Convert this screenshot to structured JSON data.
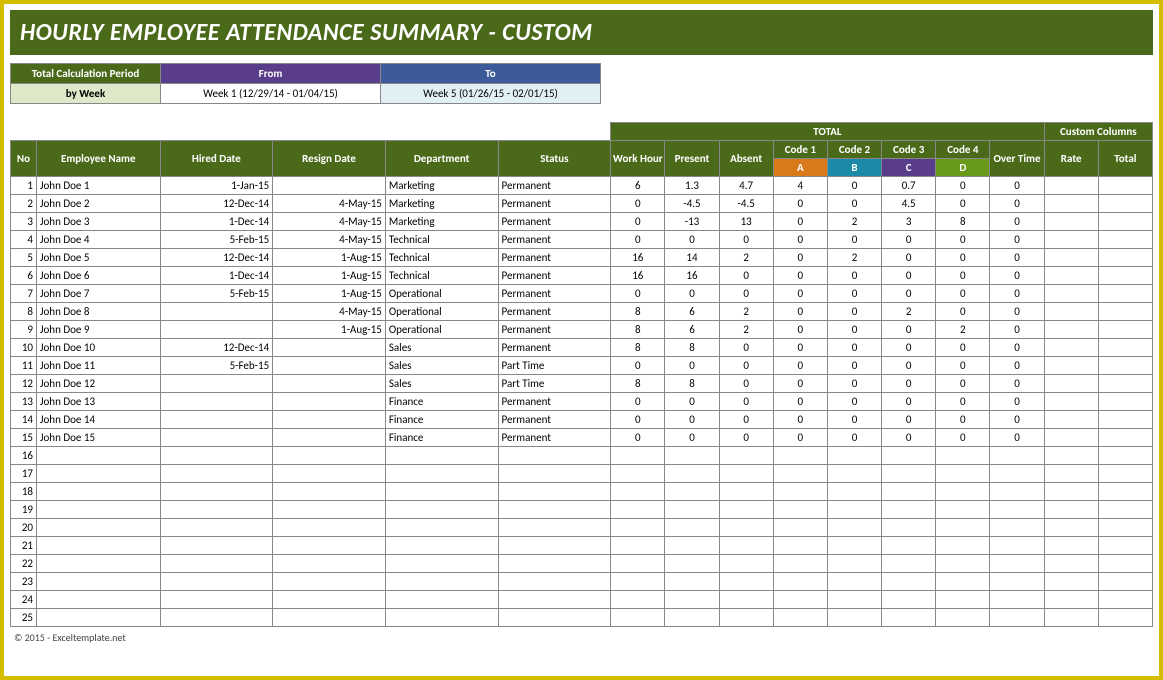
{
  "title": "HOURLY EMPLOYEE ATTENDANCE SUMMARY - CUSTOM",
  "period": {
    "headers": {
      "tcp": "Total Calculation Period",
      "from": "From",
      "to": "To"
    },
    "values": {
      "tcp": "by Week",
      "from": "Week 1 (12/29/14 - 01/04/15)",
      "to": "Week 5 (01/26/15 - 02/01/15)"
    }
  },
  "super": {
    "total": "TOTAL",
    "custom": "Custom Columns"
  },
  "columns": {
    "no": "No",
    "name": "Employee Name",
    "hired": "Hired Date",
    "resign": "Resign Date",
    "dept": "Department",
    "status": "Status",
    "wh": "Work Hour",
    "present": "Present",
    "absent": "Absent",
    "c1": "Code 1",
    "c2": "Code 2",
    "c3": "Code 3",
    "c4": "Code 4",
    "ot": "Over Time",
    "rate": "Rate",
    "total": "Total",
    "sub": {
      "a": "A",
      "b": "B",
      "c": "C",
      "d": "D"
    }
  },
  "rows": [
    {
      "no": 1,
      "name": "John Doe 1",
      "hired": "1-Jan-15",
      "resign": "",
      "dept": "Marketing",
      "status": "Permanent",
      "wh": "6",
      "pr": "1.3",
      "ab": "4.7",
      "c1": "4",
      "c2": "0",
      "c3": "0.7",
      "c4": "0",
      "ot": "0"
    },
    {
      "no": 2,
      "name": "John Doe 2",
      "hired": "12-Dec-14",
      "resign": "4-May-15",
      "dept": "Marketing",
      "status": "Permanent",
      "wh": "0",
      "pr": "-4.5",
      "ab": "-4.5",
      "c1": "0",
      "c2": "0",
      "c3": "4.5",
      "c4": "0",
      "ot": "0"
    },
    {
      "no": 3,
      "name": "John Doe 3",
      "hired": "1-Dec-14",
      "resign": "4-May-15",
      "dept": "Marketing",
      "status": "Permanent",
      "wh": "0",
      "pr": "-13",
      "ab": "13",
      "c1": "0",
      "c2": "2",
      "c3": "3",
      "c4": "8",
      "ot": "0"
    },
    {
      "no": 4,
      "name": "John Doe 4",
      "hired": "5-Feb-15",
      "resign": "4-May-15",
      "dept": "Technical",
      "status": "Permanent",
      "wh": "0",
      "pr": "0",
      "ab": "0",
      "c1": "0",
      "c2": "0",
      "c3": "0",
      "c4": "0",
      "ot": "0"
    },
    {
      "no": 5,
      "name": "John Doe 5",
      "hired": "12-Dec-14",
      "resign": "1-Aug-15",
      "dept": "Technical",
      "status": "Permanent",
      "wh": "16",
      "pr": "14",
      "ab": "2",
      "c1": "0",
      "c2": "2",
      "c3": "0",
      "c4": "0",
      "ot": "0"
    },
    {
      "no": 6,
      "name": "John Doe 6",
      "hired": "1-Dec-14",
      "resign": "1-Aug-15",
      "dept": "Technical",
      "status": "Permanent",
      "wh": "16",
      "pr": "16",
      "ab": "0",
      "c1": "0",
      "c2": "0",
      "c3": "0",
      "c4": "0",
      "ot": "0"
    },
    {
      "no": 7,
      "name": "John Doe 7",
      "hired": "5-Feb-15",
      "resign": "1-Aug-15",
      "dept": "Operational",
      "status": "Permanent",
      "wh": "0",
      "pr": "0",
      "ab": "0",
      "c1": "0",
      "c2": "0",
      "c3": "0",
      "c4": "0",
      "ot": "0"
    },
    {
      "no": 8,
      "name": "John Doe 8",
      "hired": "",
      "resign": "4-May-15",
      "dept": "Operational",
      "status": "Permanent",
      "wh": "8",
      "pr": "6",
      "ab": "2",
      "c1": "0",
      "c2": "0",
      "c3": "2",
      "c4": "0",
      "ot": "0"
    },
    {
      "no": 9,
      "name": "John Doe 9",
      "hired": "",
      "resign": "1-Aug-15",
      "dept": "Operational",
      "status": "Permanent",
      "wh": "8",
      "pr": "6",
      "ab": "2",
      "c1": "0",
      "c2": "0",
      "c3": "0",
      "c4": "2",
      "ot": "0"
    },
    {
      "no": 10,
      "name": "John Doe 10",
      "hired": "12-Dec-14",
      "resign": "",
      "dept": "Sales",
      "status": "Permanent",
      "wh": "8",
      "pr": "8",
      "ab": "0",
      "c1": "0",
      "c2": "0",
      "c3": "0",
      "c4": "0",
      "ot": "0"
    },
    {
      "no": 11,
      "name": "John Doe 11",
      "hired": "5-Feb-15",
      "resign": "",
      "dept": "Sales",
      "status": "Part Time",
      "wh": "0",
      "pr": "0",
      "ab": "0",
      "c1": "0",
      "c2": "0",
      "c3": "0",
      "c4": "0",
      "ot": "0"
    },
    {
      "no": 12,
      "name": "John Doe 12",
      "hired": "",
      "resign": "",
      "dept": "Sales",
      "status": "Part Time",
      "wh": "8",
      "pr": "8",
      "ab": "0",
      "c1": "0",
      "c2": "0",
      "c3": "0",
      "c4": "0",
      "ot": "0"
    },
    {
      "no": 13,
      "name": "John Doe 13",
      "hired": "",
      "resign": "",
      "dept": "Finance",
      "status": "Permanent",
      "wh": "0",
      "pr": "0",
      "ab": "0",
      "c1": "0",
      "c2": "0",
      "c3": "0",
      "c4": "0",
      "ot": "0"
    },
    {
      "no": 14,
      "name": "John Doe 14",
      "hired": "",
      "resign": "",
      "dept": "Finance",
      "status": "Permanent",
      "wh": "0",
      "pr": "0",
      "ab": "0",
      "c1": "0",
      "c2": "0",
      "c3": "0",
      "c4": "0",
      "ot": "0"
    },
    {
      "no": 15,
      "name": "John Doe 15",
      "hired": "",
      "resign": "",
      "dept": "Finance",
      "status": "Permanent",
      "wh": "0",
      "pr": "0",
      "ab": "0",
      "c1": "0",
      "c2": "0",
      "c3": "0",
      "c4": "0",
      "ot": "0"
    },
    {
      "no": 16
    },
    {
      "no": 17
    },
    {
      "no": 18
    },
    {
      "no": 19
    },
    {
      "no": 20
    },
    {
      "no": 21
    },
    {
      "no": 22
    },
    {
      "no": 23
    },
    {
      "no": 24
    },
    {
      "no": 25
    }
  ],
  "footer": "© 2015 - Exceltemplate.net"
}
